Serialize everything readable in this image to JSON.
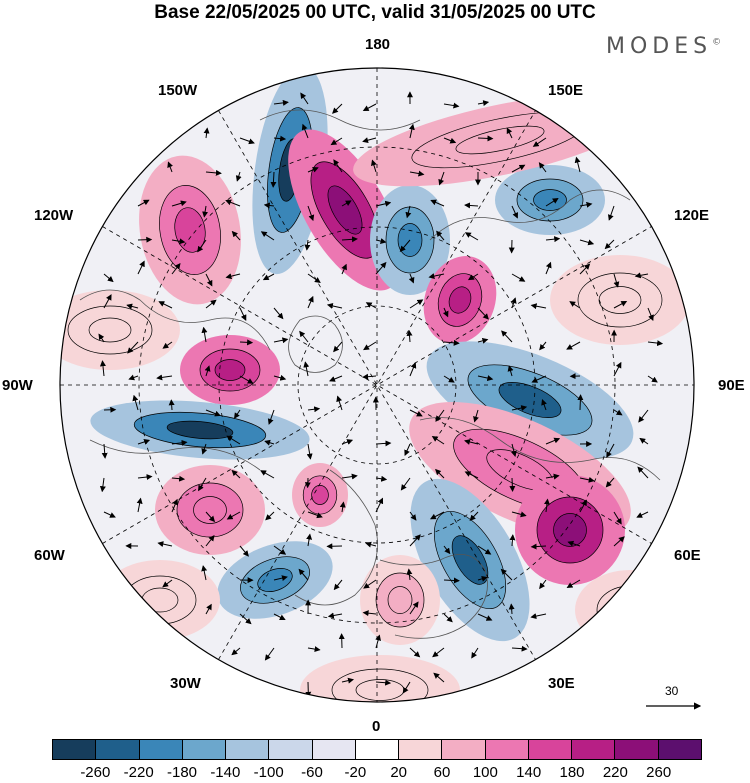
{
  "title": "Base 22/05/2025 00 UTC, valid 31/05/2025 00 UTC",
  "brand": "MODES",
  "brand_mark": "©",
  "longitude_labels": {
    "top": "180",
    "top_left": "150W",
    "top_right": "150E",
    "upper_left": "120W",
    "upper_right": "120E",
    "left": "90W",
    "right": "90E",
    "lower_left": "60W",
    "lower_right": "60E",
    "bottom_left": "30W",
    "bottom_right": "30E",
    "bottom": "0"
  },
  "reference_vector": {
    "label": "30",
    "icon": "arrow-right-icon"
  },
  "colorbar": {
    "colors": [
      "#163d5c",
      "#1f5f8b",
      "#3a86b8",
      "#6ca7cc",
      "#a6c4de",
      "#cbd7ea",
      "#e6e6f2",
      "#ffffff",
      "#f7d6d8",
      "#f3aec4",
      "#ec77b2",
      "#d8449b",
      "#b71f85",
      "#8c0f78",
      "#5c0f6e"
    ],
    "ticks": [
      "-260",
      "-220",
      "-180",
      "-140",
      "-100",
      "-60",
      "-20",
      "20",
      "60",
      "100",
      "140",
      "180",
      "220",
      "260"
    ]
  }
}
